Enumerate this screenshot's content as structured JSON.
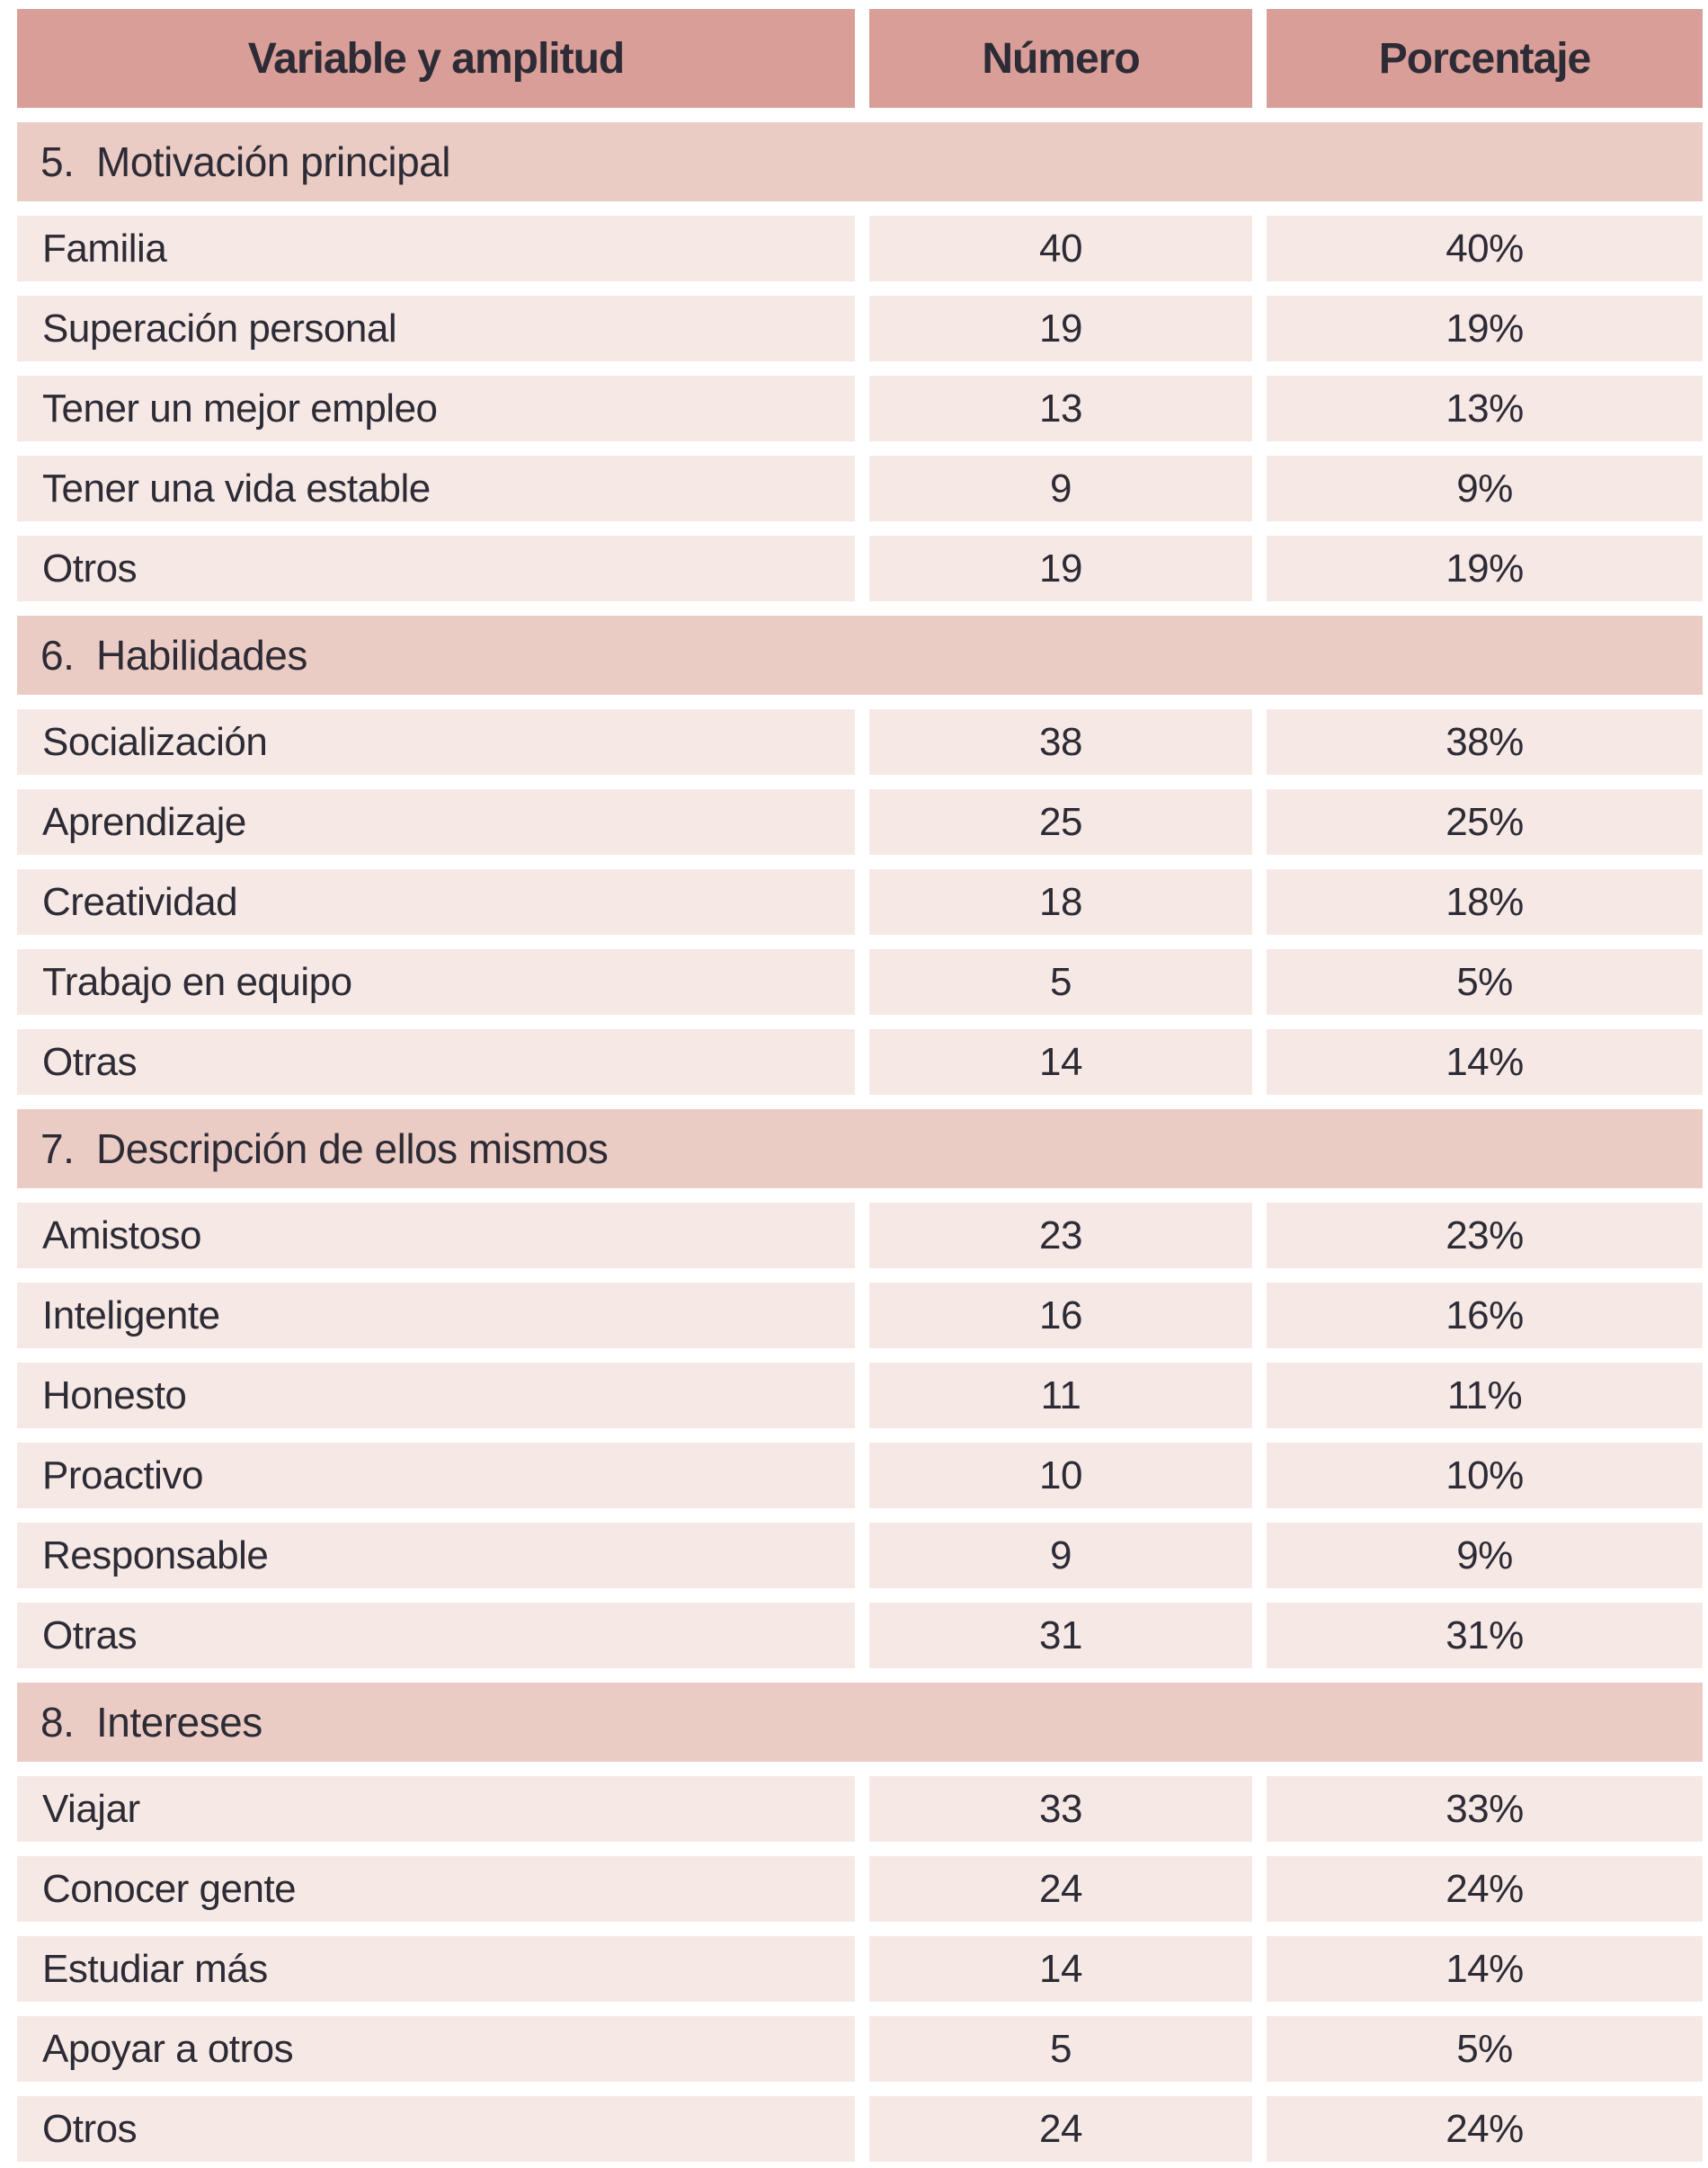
{
  "table": {
    "columns": [
      {
        "label": "Variable y amplitud"
      },
      {
        "label": "Número"
      },
      {
        "label": "Porcentaje"
      }
    ],
    "sections": [
      {
        "number": "5.",
        "title": "Motivación principal",
        "rows": [
          {
            "variable": "Familia",
            "numero": "40",
            "porcentaje": "40%"
          },
          {
            "variable": "Superación personal",
            "numero": "19",
            "porcentaje": "19%"
          },
          {
            "variable": "Tener un mejor empleo",
            "numero": "13",
            "porcentaje": "13%"
          },
          {
            "variable": "Tener una vida estable",
            "numero": "9",
            "porcentaje": "9%"
          },
          {
            "variable": "Otros",
            "numero": "19",
            "porcentaje": "19%"
          }
        ]
      },
      {
        "number": "6.",
        "title": "Habilidades",
        "rows": [
          {
            "variable": "Socialización",
            "numero": "38",
            "porcentaje": "38%"
          },
          {
            "variable": "Aprendizaje",
            "numero": "25",
            "porcentaje": "25%"
          },
          {
            "variable": "Creatividad",
            "numero": "18",
            "porcentaje": "18%"
          },
          {
            "variable": "Trabajo en equipo",
            "numero": "5",
            "porcentaje": "5%"
          },
          {
            "variable": "Otras",
            "numero": "14",
            "porcentaje": "14%"
          }
        ]
      },
      {
        "number": "7.",
        "title": "Descripción de ellos mismos",
        "rows": [
          {
            "variable": "Amistoso",
            "numero": "23",
            "porcentaje": "23%"
          },
          {
            "variable": "Inteligente",
            "numero": "16",
            "porcentaje": "16%"
          },
          {
            "variable": "Honesto",
            "numero": "11",
            "porcentaje": "11%"
          },
          {
            "variable": "Proactivo",
            "numero": "10",
            "porcentaje": "10%"
          },
          {
            "variable": "Responsable",
            "numero": "9",
            "porcentaje": "9%"
          },
          {
            "variable": "Otras",
            "numero": "31",
            "porcentaje": "31%"
          }
        ]
      },
      {
        "number": "8.",
        "title": "Intereses",
        "rows": [
          {
            "variable": "Viajar",
            "numero": "33",
            "porcentaje": "33%"
          },
          {
            "variable": "Conocer gente",
            "numero": "24",
            "porcentaje": "24%"
          },
          {
            "variable": "Estudiar más",
            "numero": "14",
            "porcentaje": "14%"
          },
          {
            "variable": "Apoyar a otros",
            "numero": "5",
            "porcentaje": "5%"
          },
          {
            "variable": "Otros",
            "numero": "24",
            "porcentaje": "24%"
          }
        ]
      }
    ]
  },
  "colors": {
    "header_bg": "#D99E98",
    "section_bg": "#EBCCC5",
    "row_bg": "#F6E9E5",
    "text": "#2D2B35",
    "gap": "#FFFFFF"
  }
}
